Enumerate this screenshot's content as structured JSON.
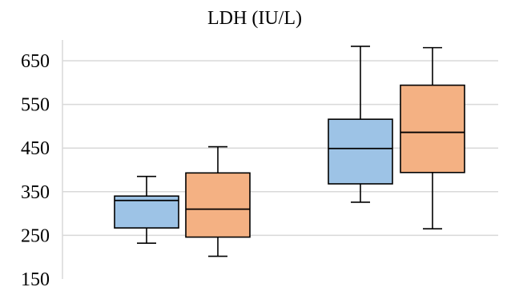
{
  "chart_data": {
    "type": "box",
    "title": "LDH (IU/L)",
    "xlabel": "",
    "ylabel": "",
    "ylim": [
      150,
      700
    ],
    "yticks": [
      150,
      250,
      350,
      450,
      550,
      650
    ],
    "grid": true,
    "legend": "none",
    "groups": [
      {
        "boxes": [
          {
            "color": "#9dc3e6",
            "min": 232,
            "q1": 267,
            "median": 330,
            "q3": 340,
            "max": 385
          },
          {
            "color": "#f4b183",
            "min": 202,
            "q1": 246,
            "median": 310,
            "q3": 393,
            "max": 453
          }
        ]
      },
      {
        "boxes": [
          {
            "color": "#9dc3e6",
            "min": 326,
            "q1": 368,
            "median": 449,
            "q3": 516,
            "max": 683
          },
          {
            "color": "#f4b183",
            "min": 265,
            "q1": 394,
            "median": 486,
            "q3": 594,
            "max": 680
          }
        ]
      }
    ]
  }
}
